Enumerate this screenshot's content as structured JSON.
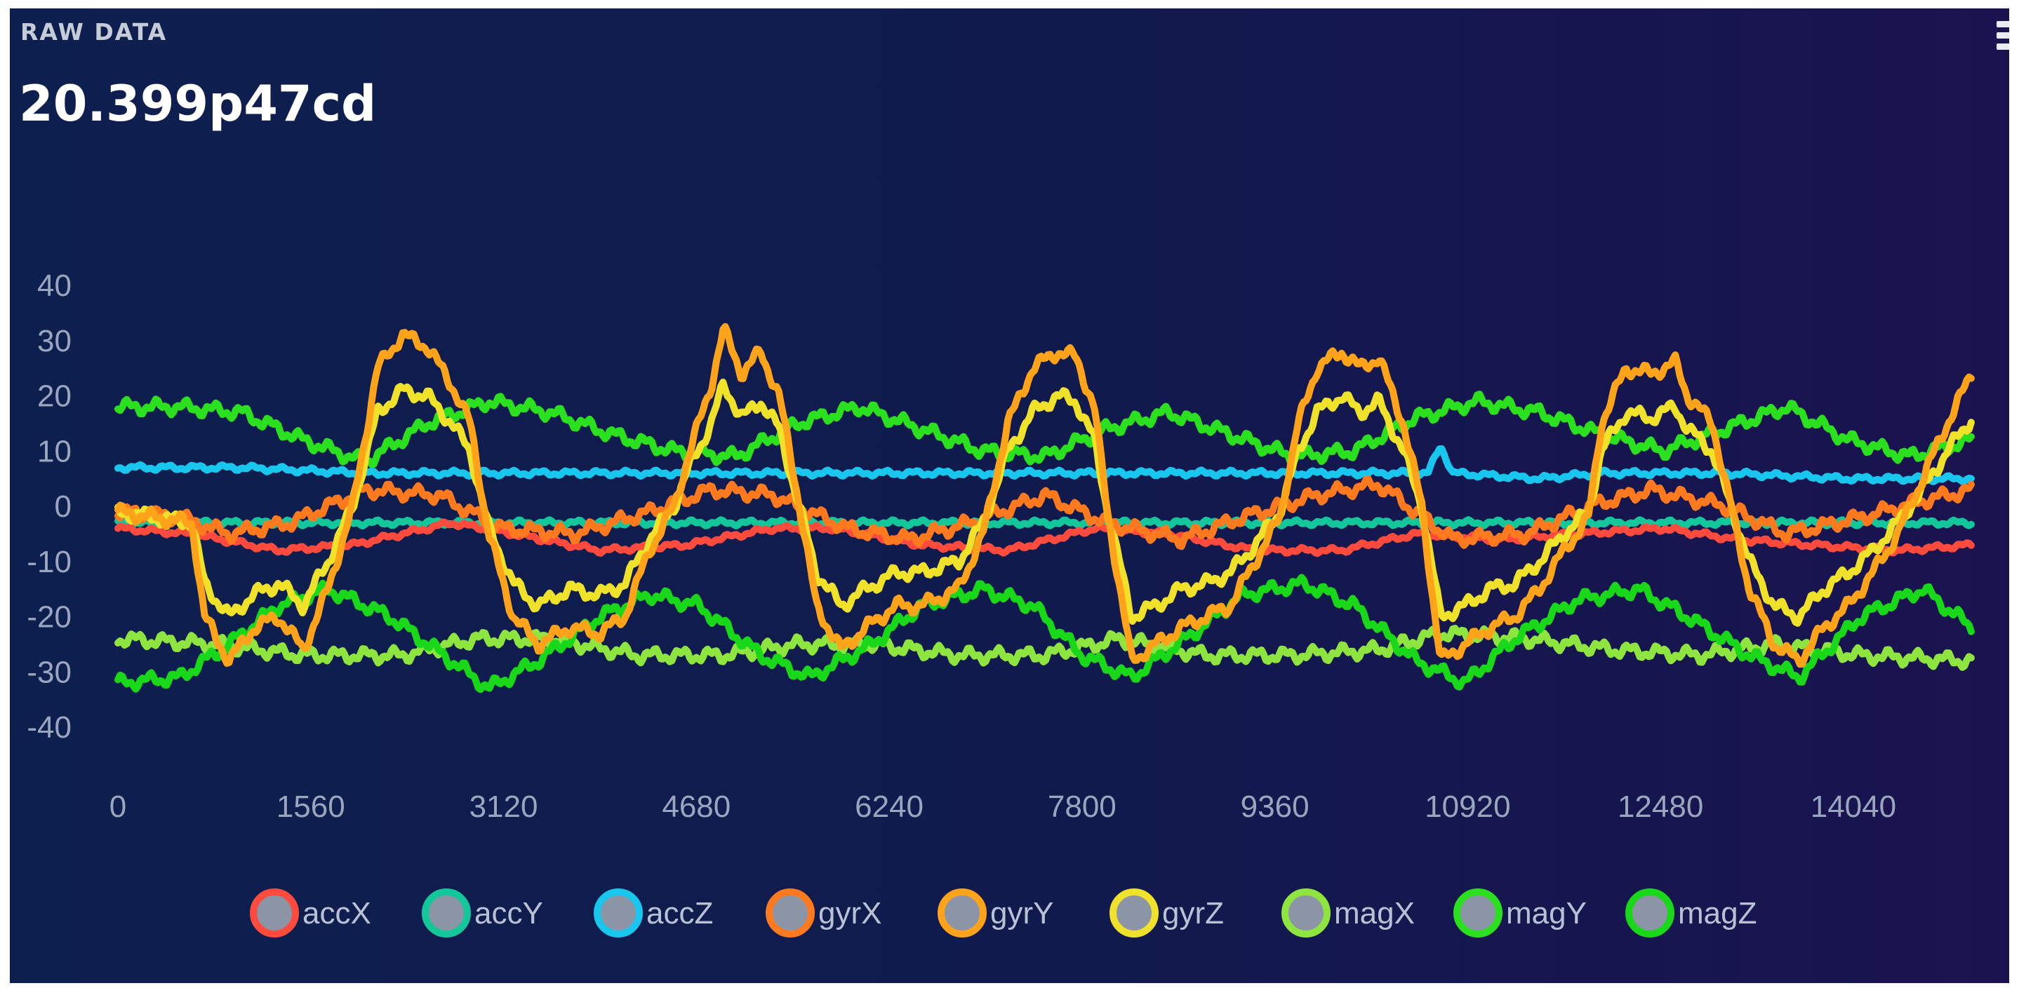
{
  "panel": {
    "title": "RAW DATA",
    "value": "20.399p47cd",
    "menu_icon": "menu-icon"
  },
  "chart_data": {
    "type": "line",
    "xlim": [
      0,
      15000
    ],
    "ylim": [
      -40,
      40
    ],
    "x_ticks": [
      0,
      1560,
      3120,
      4680,
      6240,
      7800,
      9360,
      10920,
      12480,
      14040
    ],
    "y_ticks": [
      40,
      30,
      20,
      10,
      0,
      -10,
      -20,
      -30,
      -40
    ],
    "legend_position": "bottom",
    "grid": false,
    "period": 2600,
    "series": [
      {
        "name": "accX",
        "color": "#ff4b3e",
        "x": [
          0,
          600,
          1300,
          1900,
          2700,
          3200,
          3900,
          4600,
          5300,
          5800,
          6500,
          7200,
          7900,
          8500,
          9200,
          9900,
          10500,
          11200,
          11800,
          12500,
          13100,
          13700,
          14400,
          15000
        ],
        "y": [
          -4,
          -5,
          -8,
          -7,
          -3,
          -5,
          -8,
          -7,
          -4,
          -4,
          -7,
          -8,
          -4,
          -5,
          -8,
          -8,
          -5,
          -6,
          -5,
          -4,
          -6,
          -7,
          -8,
          -7
        ]
      },
      {
        "name": "accY",
        "color": "#14c79a",
        "x": [
          0,
          15000
        ],
        "y": [
          -3,
          -3
        ]
      },
      {
        "name": "accZ",
        "color": "#19c6ee",
        "x": [
          0,
          1000,
          2000,
          3000,
          4000,
          5000,
          6000,
          7000,
          8000,
          9000,
          10000,
          10600,
          10700,
          10800,
          11500,
          12000,
          13000,
          14000,
          15000
        ],
        "y": [
          7,
          7,
          6,
          6,
          6,
          6,
          6,
          6,
          6,
          6,
          6,
          6,
          11,
          6,
          5,
          6,
          6,
          5,
          5
        ]
      },
      {
        "name": "gyrX",
        "color": "#ff7a1f",
        "x": [
          0,
          500,
          900,
          1400,
          2000,
          2600,
          3100,
          3700,
          4300,
          4800,
          5300,
          5900,
          6400,
          6900,
          7500,
          8000,
          8600,
          9100,
          9700,
          10200,
          10800,
          11400,
          11900,
          12400,
          13000,
          13500,
          14100,
          14600,
          15000
        ],
        "y": [
          -1,
          -2,
          -5,
          -3,
          3,
          2,
          -4,
          -5,
          -1,
          3,
          2,
          -4,
          -6,
          -3,
          2,
          -3,
          -6,
          -2,
          2,
          4,
          -6,
          -5,
          0,
          3,
          0,
          -5,
          -2,
          1,
          3
        ]
      },
      {
        "name": "gyrY",
        "color": "#ffa31a",
        "x": [
          0,
          300,
          600,
          700,
          900,
          1100,
          1300,
          1500,
          1700,
          1900,
          2100,
          2300,
          2500,
          2700,
          2850,
          3000,
          3200,
          3400,
          3650,
          3900,
          4100,
          4300,
          4500,
          4600,
          4800,
          4900,
          5050,
          5200,
          5350,
          5500,
          5650,
          5850,
          6050,
          6300,
          6500,
          6800,
          7000,
          7200,
          7400,
          7600,
          7750,
          7900,
          8000,
          8200,
          8400,
          8600,
          8800,
          9000,
          9200,
          9400,
          9550,
          9700,
          9900,
          10050,
          10200,
          10400,
          10550,
          10700,
          10900,
          11100,
          11300,
          11500,
          11700,
          11900,
          12000,
          12200,
          12400,
          12600,
          12700,
          12900,
          13050,
          13200,
          13400,
          13600,
          13800,
          14000,
          14200,
          14400,
          14600,
          14800,
          15000
        ],
        "y": [
          -1,
          -2,
          -3,
          -20,
          -28,
          -22,
          -20,
          -26,
          -15,
          0,
          25,
          31,
          29,
          22,
          15,
          -5,
          -20,
          -25,
          -22,
          -23,
          -20,
          -8,
          0,
          8,
          22,
          32,
          24,
          28,
          20,
          2,
          -18,
          -26,
          -22,
          -18,
          -18,
          -15,
          -5,
          15,
          25,
          28,
          27,
          18,
          0,
          -28,
          -25,
          -22,
          -20,
          -18,
          -10,
          -2,
          15,
          25,
          28,
          25,
          27,
          15,
          0,
          -28,
          -25,
          -22,
          -20,
          -15,
          -8,
          -2,
          15,
          25,
          24,
          26,
          20,
          15,
          0,
          -15,
          -25,
          -28,
          -22,
          -18,
          -12,
          -5,
          5,
          15,
          24
        ]
      },
      {
        "name": "gyrZ",
        "color": "#f0e12a",
        "x": [
          0,
          300,
          600,
          700,
          900,
          1100,
          1300,
          1500,
          1700,
          1900,
          2100,
          2300,
          2500,
          2700,
          2850,
          3000,
          3200,
          3400,
          3650,
          3900,
          4100,
          4300,
          4500,
          4600,
          4800,
          4900,
          5050,
          5200,
          5350,
          5500,
          5650,
          5850,
          6050,
          6300,
          6500,
          6800,
          7000,
          7200,
          7400,
          7600,
          7750,
          7900,
          8000,
          8200,
          8400,
          8600,
          8800,
          9000,
          9200,
          9400,
          9550,
          9700,
          9900,
          10050,
          10200,
          10400,
          10550,
          10700,
          10900,
          11100,
          11300,
          11500,
          11700,
          11900,
          12000,
          12200,
          12400,
          12600,
          12700,
          12900,
          13050,
          13200,
          13400,
          13600,
          13800,
          14000,
          14200,
          14400,
          14600,
          14800,
          15000
        ],
        "y": [
          -1,
          -2,
          -3,
          -14,
          -20,
          -16,
          -14,
          -18,
          -10,
          0,
          17,
          21,
          20,
          15,
          10,
          -4,
          -14,
          -18,
          -15,
          -16,
          -14,
          -6,
          0,
          6,
          15,
          22,
          16,
          19,
          14,
          1,
          -12,
          -18,
          -15,
          -12,
          -12,
          -10,
          -3,
          10,
          17,
          20,
          19,
          12,
          0,
          -20,
          -18,
          -15,
          -14,
          -12,
          -7,
          -1,
          10,
          17,
          20,
          17,
          19,
          10,
          0,
          -20,
          -18,
          -15,
          -14,
          -10,
          -5,
          -1,
          10,
          17,
          16,
          18,
          14,
          10,
          0,
          -10,
          -18,
          -20,
          -15,
          -12,
          -8,
          -3,
          3,
          10,
          16
        ]
      },
      {
        "name": "magX",
        "color": "#8ee53f",
        "x": [
          0,
          800,
          1500,
          2300,
          2900,
          3500,
          4200,
          4900,
          5500,
          6100,
          6800,
          7500,
          8100,
          8800,
          9500,
          10200,
          10700,
          11400,
          12100,
          12800,
          13400,
          14100,
          15000
        ],
        "y": [
          -24,
          -25,
          -27,
          -27,
          -24,
          -24,
          -27,
          -27,
          -25,
          -25,
          -27,
          -27,
          -24,
          -27,
          -27,
          -26,
          -23,
          -24,
          -26,
          -27,
          -25,
          -27,
          -28
        ]
      },
      {
        "name": "magY",
        "color": "#2be01f",
        "x": [
          0,
          500,
          1000,
          1500,
          2000,
          2500,
          3000,
          3500,
          4000,
          4500,
          5000,
          5500,
          6000,
          6500,
          7000,
          7500,
          8000,
          8500,
          9000,
          9500,
          10000,
          10500,
          11000,
          11500,
          12000,
          12500,
          13000,
          13500,
          14000,
          14500,
          15000
        ],
        "y": [
          18,
          18,
          17,
          12,
          8,
          15,
          19,
          17,
          13,
          10,
          9,
          15,
          18,
          14,
          10,
          9,
          14,
          17,
          13,
          9,
          10,
          16,
          19,
          17,
          13,
          10,
          14,
          18,
          12,
          9,
          12
        ]
      },
      {
        "name": "magZ",
        "color": "#19d819",
        "x": [
          0,
          500,
          900,
          1300,
          1700,
          2200,
          2700,
          3000,
          3400,
          3900,
          4300,
          4700,
          5200,
          5600,
          6100,
          6500,
          7000,
          7400,
          7800,
          8200,
          8700,
          9100,
          9600,
          10000,
          10500,
          10900,
          11300,
          11800,
          12300,
          12700,
          13200,
          13600,
          14100,
          14600,
          15000
        ],
        "y": [
          -32,
          -31,
          -25,
          -18,
          -15,
          -20,
          -28,
          -33,
          -28,
          -20,
          -16,
          -18,
          -27,
          -31,
          -25,
          -18,
          -15,
          -18,
          -27,
          -31,
          -23,
          -16,
          -14,
          -18,
          -28,
          -32,
          -24,
          -17,
          -15,
          -20,
          -27,
          -31,
          -20,
          -15,
          -22
        ]
      }
    ]
  }
}
